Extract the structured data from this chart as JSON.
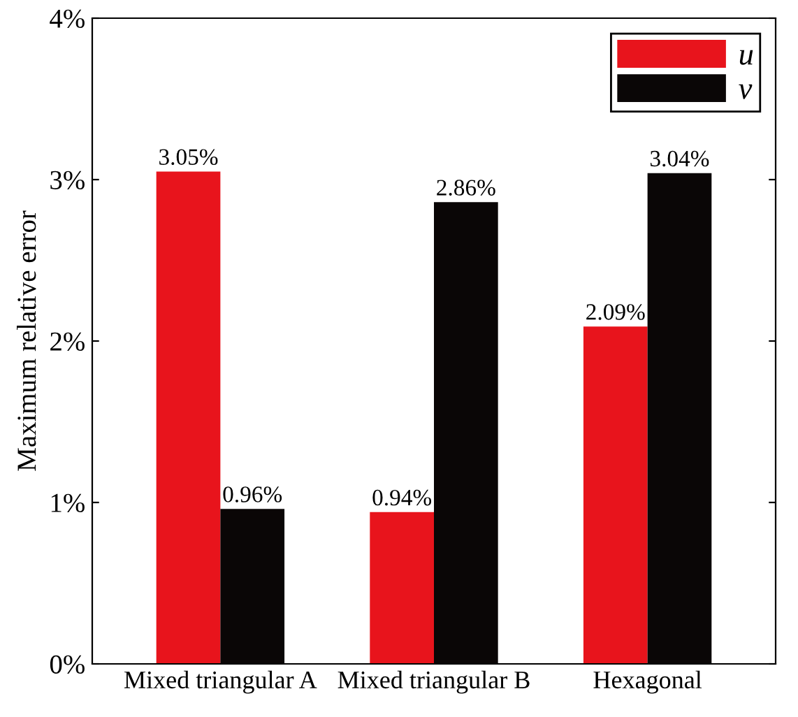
{
  "chart_data": {
    "type": "bar",
    "ylabel": "Maximum relative error",
    "categories": [
      "Mixed triangular A",
      "Mixed triangular B",
      "Hexagonal"
    ],
    "series": [
      {
        "name": "u",
        "color": "#e8141c",
        "values": [
          3.05,
          0.94,
          2.09
        ],
        "value_labels": [
          "3.05%",
          "0.94%",
          "2.09%"
        ]
      },
      {
        "name": "v",
        "color": "#0a0606",
        "values": [
          0.96,
          2.86,
          3.04
        ],
        "value_labels": [
          "0.96%",
          "2.86%",
          "3.04%"
        ]
      }
    ],
    "ylim": [
      0,
      4
    ],
    "yticks": [
      {
        "value": 0,
        "label": "0%"
      },
      {
        "value": 1,
        "label": "1%"
      },
      {
        "value": 2,
        "label": "2%"
      },
      {
        "value": 3,
        "label": "3%"
      },
      {
        "value": 4,
        "label": "4%"
      }
    ],
    "grid": false,
    "legend": "top right"
  }
}
